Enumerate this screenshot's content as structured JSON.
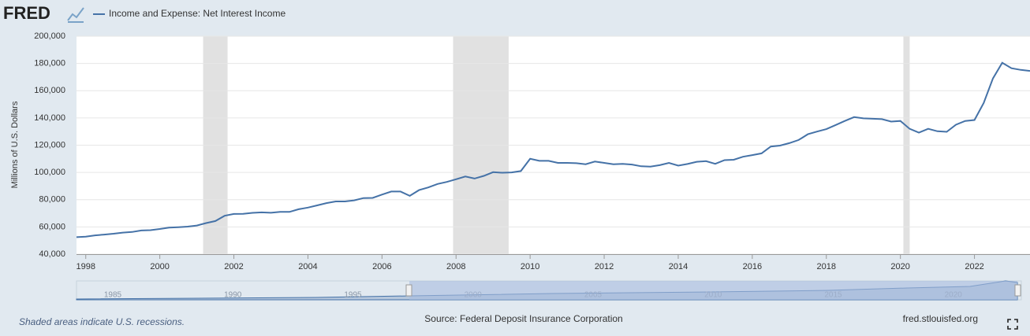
{
  "chart_data": {
    "type": "line",
    "logo": "FRED",
    "ylabel": "Millions of U.S. Dollars",
    "note": "Shaded areas indicate U.S. recessions.",
    "source": "Source: Federal Deposit Insurance Corporation",
    "site": "fred.stlouisfed.org",
    "xlim": [
      1997.75,
      2023.5
    ],
    "ylim": [
      40000,
      200000
    ],
    "xticks": [
      1998,
      2000,
      2002,
      2004,
      2006,
      2008,
      2010,
      2012,
      2014,
      2016,
      2018,
      2020,
      2022
    ],
    "yticks": [
      {
        "value": 40000,
        "label": "40,000"
      },
      {
        "value": 60000,
        "label": "60,000"
      },
      {
        "value": 80000,
        "label": "80,000"
      },
      {
        "value": 100000,
        "label": "100,000"
      },
      {
        "value": 120000,
        "label": "120,000"
      },
      {
        "value": 140000,
        "label": "140,000"
      },
      {
        "value": 160000,
        "label": "160,000"
      },
      {
        "value": 180000,
        "label": "180,000"
      },
      {
        "value": 200000,
        "label": "200,000"
      }
    ],
    "grid": true,
    "recessions": [
      [
        2001.17,
        2001.83
      ],
      [
        2007.92,
        2009.42
      ],
      [
        2020.08,
        2020.25
      ]
    ],
    "recession_color": "#e1e1e1",
    "navigator_labels": [
      1985,
      1990,
      1995,
      2000,
      2005,
      2010,
      2015,
      2020
    ],
    "x": [
      1997.75,
      1998,
      1998.25,
      1998.5,
      1998.75,
      1999,
      1999.25,
      1999.5,
      1999.75,
      2000,
      2000.25,
      2000.5,
      2000.75,
      2001,
      2001.25,
      2001.5,
      2001.75,
      2002,
      2002.25,
      2002.5,
      2002.75,
      2003,
      2003.25,
      2003.5,
      2003.75,
      2004,
      2004.25,
      2004.5,
      2004.75,
      2005,
      2005.25,
      2005.5,
      2005.75,
      2006,
      2006.25,
      2006.5,
      2006.75,
      2007,
      2007.25,
      2007.5,
      2007.75,
      2008,
      2008.25,
      2008.5,
      2008.75,
      2009,
      2009.25,
      2009.5,
      2009.75,
      2010,
      2010.25,
      2010.5,
      2010.75,
      2011,
      2011.25,
      2011.5,
      2011.75,
      2012,
      2012.25,
      2012.5,
      2012.75,
      2013,
      2013.25,
      2013.5,
      2013.75,
      2014,
      2014.25,
      2014.5,
      2014.75,
      2015,
      2015.25,
      2015.5,
      2015.75,
      2016,
      2016.25,
      2016.5,
      2016.75,
      2017,
      2017.25,
      2017.5,
      2017.75,
      2018,
      2018.25,
      2018.5,
      2018.75,
      2019,
      2019.25,
      2019.5,
      2019.75,
      2020,
      2020.25,
      2020.5,
      2020.75,
      2021,
      2021.25,
      2021.5,
      2021.75,
      2022,
      2022.25,
      2022.5,
      2022.75,
      2023,
      2023.25,
      2023.5
    ],
    "series": [
      {
        "name": "Income and Expense: Net Interest Income",
        "color": "#4572a7",
        "values": [
          52500,
          52800,
          53800,
          54400,
          55000,
          55800,
          56300,
          57400,
          57600,
          58500,
          59500,
          59800,
          60200,
          61000,
          62800,
          64300,
          68200,
          69500,
          69600,
          70300,
          70700,
          70400,
          71000,
          71000,
          73000,
          74200,
          75800,
          77500,
          78700,
          78700,
          79500,
          81200,
          81300,
          83700,
          86000,
          86000,
          82800,
          87000,
          89000,
          91500,
          93000,
          95000,
          97000,
          95500,
          97500,
          100200,
          99800,
          100000,
          101000,
          110000,
          108500,
          108500,
          107000,
          107000,
          106800,
          106000,
          108000,
          107000,
          106000,
          106300,
          105800,
          104500,
          104300,
          105300,
          107000,
          105000,
          106200,
          107800,
          108300,
          106300,
          109000,
          109300,
          111500,
          112700,
          114000,
          119000,
          119700,
          121500,
          123800,
          128000,
          130000,
          131800,
          134800,
          137800,
          140600,
          139700,
          139400,
          139100,
          137300,
          137800,
          132000,
          129200,
          132000,
          130200,
          129800,
          135000,
          137800,
          138500,
          151000,
          169000,
          180500,
          176500,
          175300,
          174500
        ]
      }
    ]
  }
}
